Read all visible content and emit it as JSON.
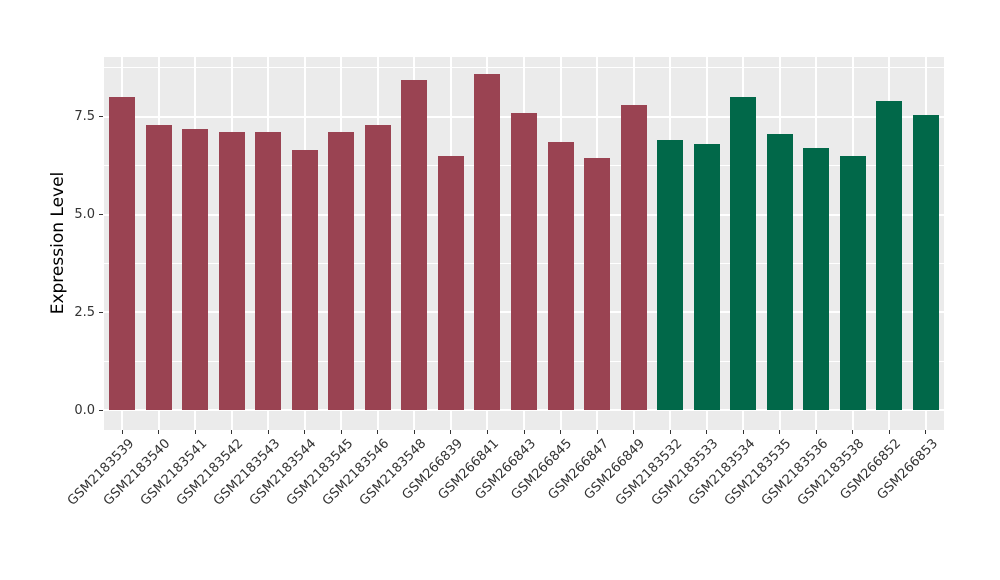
{
  "chart_data": {
    "type": "bar",
    "title": "",
    "xlabel": "",
    "ylabel": "Expression Level",
    "categories": [
      "GSM2183539",
      "GSM2183540",
      "GSM2183541",
      "GSM2183542",
      "GSM2183543",
      "GSM2183544",
      "GSM2183545",
      "GSM2183546",
      "GSM2183548",
      "GSM266839",
      "GSM266841",
      "GSM266843",
      "GSM266845",
      "GSM266847",
      "GSM266849",
      "GSM2183532",
      "GSM2183533",
      "GSM2183534",
      "GSM2183535",
      "GSM2183536",
      "GSM2183538",
      "GSM266852",
      "GSM266853"
    ],
    "values": [
      8.0,
      7.3,
      7.2,
      7.1,
      7.1,
      6.65,
      7.1,
      7.3,
      8.45,
      6.5,
      8.6,
      7.6,
      6.85,
      6.45,
      7.8,
      6.9,
      6.8,
      8.0,
      7.05,
      6.7,
      6.5,
      7.9,
      7.55
    ],
    "bar_colors": [
      "#9A4352",
      "#9A4352",
      "#9A4352",
      "#9A4352",
      "#9A4352",
      "#9A4352",
      "#9A4352",
      "#9A4352",
      "#9A4352",
      "#9A4352",
      "#9A4352",
      "#9A4352",
      "#9A4352",
      "#9A4352",
      "#9A4352",
      "#016849",
      "#016849",
      "#016849",
      "#016849",
      "#016849",
      "#016849",
      "#016849",
      "#016849"
    ],
    "group_colors": {
      "red_group": "#9A4352",
      "green_group": "#016849"
    },
    "yticks": [
      0.0,
      2.5,
      5.0,
      7.5
    ],
    "ytick_labels": [
      "0.0",
      "2.5",
      "5.0",
      "7.5"
    ],
    "yticks_minor": [
      1.25,
      3.75,
      6.25,
      8.75
    ],
    "ylim": [
      -0.51,
      9.03
    ],
    "legend": "none",
    "grid": true,
    "panel_background": "#EBEBEB",
    "gridline_color": "#FFFFFF",
    "tick_color": "#333333"
  }
}
